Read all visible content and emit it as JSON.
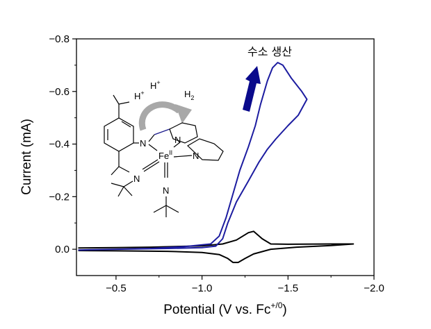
{
  "chart_data": {
    "type": "line",
    "title": "",
    "xlabel": "Potential (V vs. Fc",
    "xlabel_sup": "+/0",
    "xlabel_end": ")",
    "ylabel": "Current (mA)",
    "xlim": [
      -0.27,
      -2.0
    ],
    "ylim": [
      0.1,
      -0.8
    ],
    "x_inverted": true,
    "y_inverted": true,
    "x_ticks": [
      {
        "value": -0.5,
        "label": "−0.5"
      },
      {
        "value": -1.0,
        "label": "−1.0"
      },
      {
        "value": -1.5,
        "label": "−1.5"
      },
      {
        "value": -2.0,
        "label": "−2.0"
      }
    ],
    "y_ticks": [
      {
        "value": 0.0,
        "label": "0.0"
      },
      {
        "value": -0.2,
        "label": "−0.2"
      },
      {
        "value": -0.4,
        "label": "−0.4"
      },
      {
        "value": -0.6,
        "label": "−0.6"
      },
      {
        "value": -0.8,
        "label": "−0.8"
      }
    ],
    "series": [
      {
        "color": "#000000",
        "points": [
          [
            -0.28,
            0.005
          ],
          [
            -0.5,
            0.006
          ],
          [
            -0.8,
            0.008
          ],
          [
            -1.0,
            0.012
          ],
          [
            -1.1,
            0.02
          ],
          [
            -1.15,
            0.035
          ],
          [
            -1.18,
            0.05
          ],
          [
            -1.21,
            0.05
          ],
          [
            -1.25,
            0.035
          ],
          [
            -1.3,
            0.018
          ],
          [
            -1.4,
            0.0
          ],
          [
            -1.55,
            -0.008
          ],
          [
            -1.75,
            -0.014
          ],
          [
            -1.88,
            -0.02
          ],
          [
            -1.75,
            -0.02
          ],
          [
            -1.5,
            -0.019
          ],
          [
            -1.4,
            -0.02
          ],
          [
            -1.35,
            -0.04
          ],
          [
            -1.3,
            -0.068
          ],
          [
            -1.27,
            -0.063
          ],
          [
            -1.2,
            -0.035
          ],
          [
            -1.12,
            -0.02
          ],
          [
            -1.0,
            -0.013
          ],
          [
            -0.7,
            -0.008
          ],
          [
            -0.5,
            -0.006
          ],
          [
            -0.28,
            -0.005
          ]
        ]
      },
      {
        "color": "#1c1ca0",
        "points": [
          [
            -0.28,
            0.003
          ],
          [
            -0.5,
            0.0
          ],
          [
            -0.8,
            -0.003
          ],
          [
            -1.0,
            -0.006
          ],
          [
            -1.08,
            -0.012
          ],
          [
            -1.12,
            -0.04
          ],
          [
            -1.15,
            -0.1
          ],
          [
            -1.2,
            -0.18
          ],
          [
            -1.27,
            -0.26
          ],
          [
            -1.33,
            -0.33
          ],
          [
            -1.38,
            -0.38
          ],
          [
            -1.43,
            -0.42
          ],
          [
            -1.5,
            -0.47
          ],
          [
            -1.56,
            -0.51
          ],
          [
            -1.61,
            -0.57
          ],
          [
            -1.58,
            -0.6
          ],
          [
            -1.52,
            -0.65
          ],
          [
            -1.47,
            -0.7
          ],
          [
            -1.44,
            -0.71
          ],
          [
            -1.41,
            -0.69
          ],
          [
            -1.38,
            -0.64
          ],
          [
            -1.34,
            -0.55
          ],
          [
            -1.31,
            -0.47
          ],
          [
            -1.27,
            -0.39
          ],
          [
            -1.22,
            -0.3
          ],
          [
            -1.18,
            -0.21
          ],
          [
            -1.14,
            -0.12
          ],
          [
            -1.1,
            -0.05
          ],
          [
            -1.05,
            -0.02
          ],
          [
            -0.9,
            -0.01
          ],
          [
            -0.7,
            -0.003
          ],
          [
            -0.5,
            0.0
          ],
          [
            -0.28,
            0.003
          ]
        ]
      }
    ],
    "annotation": "수소 생산",
    "grid": false
  },
  "molecule_labels": {
    "h_plus_1": "H",
    "h_plus_1_sup": "+",
    "h_plus_2": "H",
    "h_plus_2_sup": "+",
    "h2": "H",
    "h2_sub": "2",
    "n1": "N",
    "n2": "N",
    "n3": "N",
    "n4": "N",
    "n5": "N",
    "fe": "Fe",
    "fe_sup": "II"
  },
  "colors": {
    "axis": "#000000",
    "series_black": "#000000",
    "series_blue": "#1c1ca0",
    "arrow_blue": "#0a0a8c",
    "arrow_gray": "#a8a8a8"
  }
}
